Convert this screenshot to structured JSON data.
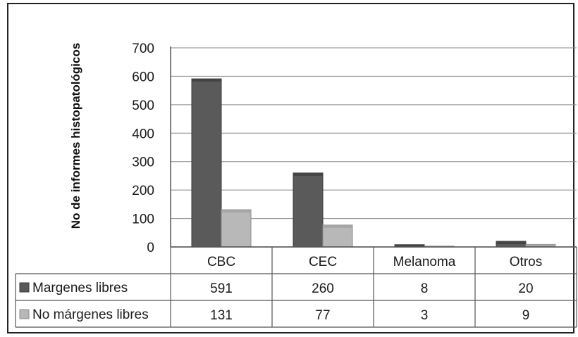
{
  "chart_data": {
    "type": "bar",
    "categories": [
      "CBC",
      "CEC",
      "Melanoma",
      "Otros"
    ],
    "series": [
      {
        "name": "Margenes libres",
        "values": [
          591,
          260,
          8,
          20
        ],
        "color": "#5a5a5a"
      },
      {
        "name": "No márgenes libres",
        "values": [
          131,
          77,
          3,
          9
        ],
        "color": "#b8b8b8"
      }
    ],
    "ylabel": "No de informes histopatológicos",
    "xlabel": "",
    "ylim": [
      0,
      700
    ],
    "yticks": [
      0,
      100,
      200,
      300,
      400,
      500,
      600,
      700
    ],
    "grid": true,
    "legend": "data-table-left"
  }
}
